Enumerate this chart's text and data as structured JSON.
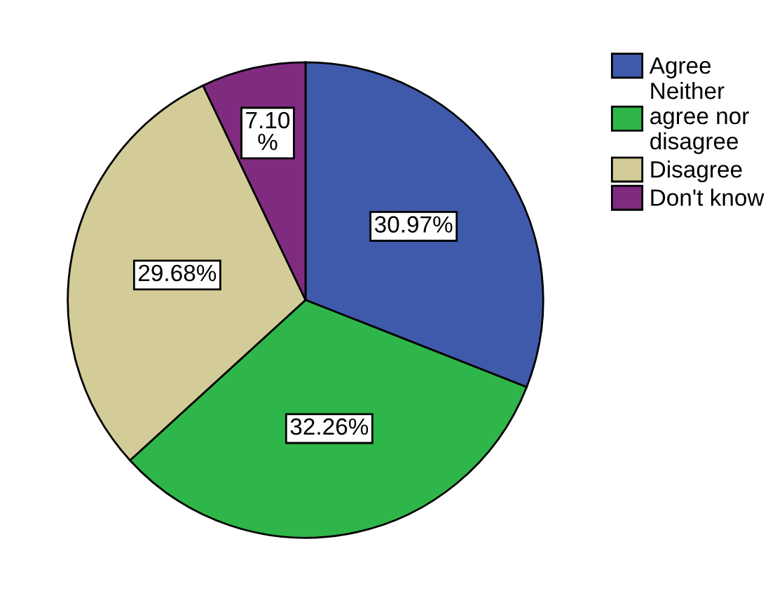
{
  "chart_data": {
    "type": "pie",
    "categories": [
      "Agree",
      "Neither\nagree nor\ndisagree",
      "Disagree",
      "Don't know"
    ],
    "values": [
      30.97,
      32.26,
      29.68,
      7.1
    ],
    "colors": [
      "#3f59ab",
      "#2fb64a",
      "#d4cc98",
      "#7f2b7f"
    ],
    "value_labels": [
      "30.97%",
      "32.26%",
      "29.68%",
      "7.10\n%"
    ],
    "legend": "top right"
  }
}
